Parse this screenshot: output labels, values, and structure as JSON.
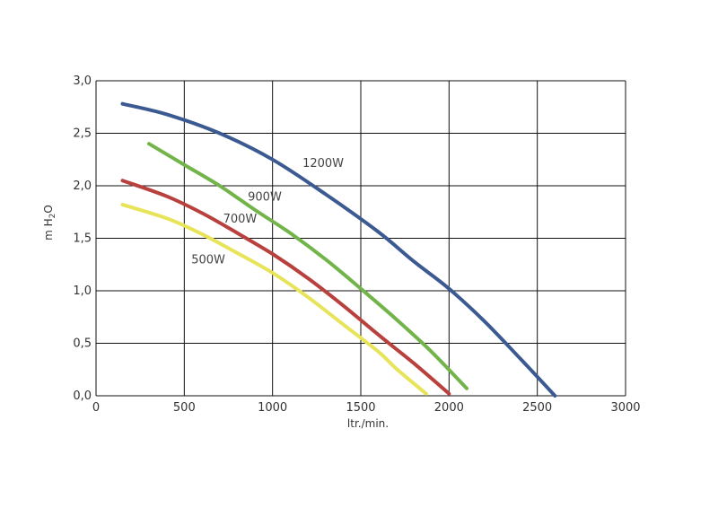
{
  "chart_data": {
    "type": "line",
    "title": "",
    "xlabel": "ltr./min.",
    "ylabel_parts": [
      "m H",
      "2",
      "O"
    ],
    "xlim": [
      0,
      3000
    ],
    "ylim": [
      0,
      3
    ],
    "xticks": [
      0,
      500,
      1000,
      1500,
      2000,
      2500,
      3000
    ],
    "xtick_labels": [
      "0",
      "500",
      "1000",
      "1500",
      "2000",
      "2500",
      "3000"
    ],
    "yticks": [
      0,
      0.5,
      1,
      1.5,
      2,
      2.5,
      3
    ],
    "ytick_labels": [
      "0,0",
      "0,5",
      "1,0",
      "1,5",
      "2,0",
      "2,5",
      "3,0"
    ],
    "grid": true,
    "legend": "none",
    "series": [
      {
        "name": "1200W",
        "color": "#3c5a92",
        "label_at": [
          1170,
          2.18
        ],
        "x": [
          150,
          400,
          700,
          1000,
          1300,
          1600,
          1800,
          2000,
          2200,
          2400,
          2600
        ],
        "y": [
          2.78,
          2.68,
          2.5,
          2.25,
          1.92,
          1.56,
          1.28,
          1.02,
          0.71,
          0.36,
          0.0
        ]
      },
      {
        "name": "900W",
        "color": "#72b44a",
        "label_at": [
          860,
          1.86
        ],
        "x": [
          300,
          500,
          700,
          900,
          1100,
          1300,
          1500,
          1700,
          1900,
          2100
        ],
        "y": [
          2.4,
          2.2,
          2.0,
          1.77,
          1.55,
          1.3,
          1.02,
          0.73,
          0.42,
          0.07
        ]
      },
      {
        "name": "700W",
        "color": "#b8413e",
        "label_at": [
          720,
          1.65
        ],
        "x": [
          150,
          400,
          600,
          800,
          1000,
          1200,
          1400,
          1600,
          1800,
          2000
        ],
        "y": [
          2.05,
          1.9,
          1.74,
          1.55,
          1.35,
          1.12,
          0.86,
          0.58,
          0.31,
          0.02
        ]
      },
      {
        "name": "500W",
        "color": "#e8e45a",
        "label_at": [
          540,
          1.26
        ],
        "x": [
          150,
          400,
          600,
          800,
          1000,
          1200,
          1400,
          1600,
          1700,
          1870
        ],
        "y": [
          1.82,
          1.69,
          1.54,
          1.36,
          1.17,
          0.94,
          0.68,
          0.42,
          0.26,
          0.02
        ]
      }
    ]
  }
}
